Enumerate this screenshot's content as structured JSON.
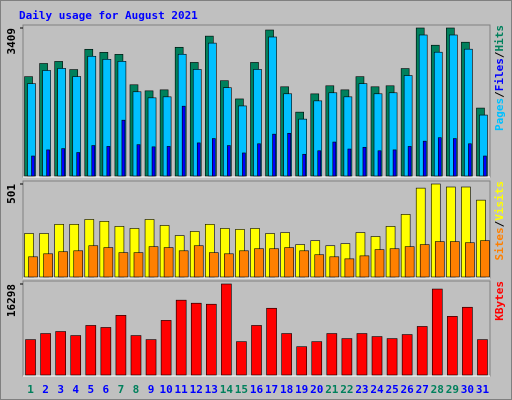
{
  "chart_data": [
    {
      "type": "bar",
      "title": "Daily usage for August 2021",
      "title_color": "#0000ff",
      "legend_separator": "/",
      "series": [
        {
          "name": "Hits",
          "color": "#00805c",
          "values": [
            2296,
            2597,
            2644,
            2458,
            2922,
            2852,
            2806,
            2110,
            1971,
            1994,
            2968,
            2621,
            3223,
            2203,
            1786,
            2621,
            3363,
            2064,
            1484,
            1902,
            2087,
            1994,
            2296,
            2064,
            2087,
            2481,
            3409,
            3015,
            3409,
            3084,
            1577
          ]
        },
        {
          "name": "Files",
          "color": "#0000ff",
          "values": [
            480,
            620,
            650,
            560,
            720,
            700,
            1300,
            740,
            690,
            700,
            1620,
            780,
            880,
            720,
            550,
            760,
            980,
            1000,
            520,
            600,
            800,
            640,
            680,
            600,
            620,
            700,
            820,
            900,
            880,
            760,
            480
          ]
        },
        {
          "name": "Pages",
          "color": "#00c0ff",
          "values": [
            2136,
            2437,
            2484,
            2298,
            2762,
            2692,
            2646,
            1950,
            1811,
            1834,
            2808,
            2461,
            3063,
            2043,
            1626,
            2461,
            3203,
            1904,
            1324,
            1742,
            1927,
            1834,
            2136,
            1904,
            1927,
            2321,
            3249,
            2855,
            3249,
            2924,
            1417
          ]
        }
      ],
      "ylim": [
        0,
        3409
      ],
      "yticks": [
        3409
      ]
    },
    {
      "type": "bar",
      "series": [
        {
          "name": "Visits",
          "color": "#ffff00",
          "values": [
            237,
            237,
            286,
            286,
            312,
            302,
            275,
            264,
            312,
            280,
            226,
            248,
            286,
            264,
            259,
            264,
            237,
            242,
            178,
            199,
            172,
            183,
            242,
            221,
            275,
            339,
            479,
            501,
            485,
            485,
            415
          ]
        },
        {
          "name": "Sites",
          "color": "#ff8000",
          "values": [
            113,
            129,
            140,
            145,
            172,
            162,
            135,
            135,
            167,
            162,
            145,
            172,
            135,
            129,
            145,
            156,
            156,
            162,
            145,
            124,
            113,
            102,
            118,
            151,
            156,
            167,
            178,
            194,
            194,
            188,
            199
          ]
        }
      ],
      "ylim": [
        0,
        501
      ],
      "yticks": [
        501
      ]
    },
    {
      "type": "bar",
      "categories": [
        "1",
        "2",
        "3",
        "4",
        "5",
        "6",
        "7",
        "8",
        "9",
        "10",
        "11",
        "12",
        "13",
        "14",
        "15",
        "16",
        "17",
        "18",
        "19",
        "20",
        "21",
        "22",
        "23",
        "24",
        "25",
        "26",
        "27",
        "28",
        "29",
        "30",
        "31"
      ],
      "category_colors": [
        "#00805c",
        "#0000ff",
        "#0000ff",
        "#0000ff",
        "#0000ff",
        "#0000ff",
        "#00805c",
        "#00805c",
        "#0000ff",
        "#0000ff",
        "#0000ff",
        "#0000ff",
        "#0000ff",
        "#00805c",
        "#00805c",
        "#0000ff",
        "#0000ff",
        "#0000ff",
        "#0000ff",
        "#0000ff",
        "#00805c",
        "#00805c",
        "#0000ff",
        "#0000ff",
        "#0000ff",
        "#0000ff",
        "#0000ff",
        "#00805c",
        "#00805c",
        "#0000ff",
        "#0000ff"
      ],
      "series": [
        {
          "name": "KBytes",
          "color": "#ff0000",
          "values": [
            6448,
            7522,
            7880,
            7164,
            8955,
            8597,
            10746,
            7164,
            6448,
            9850,
            13432,
            12895,
            12716,
            16298,
            6089,
            8955,
            12000,
            7522,
            5194,
            6089,
            7522,
            6627,
            7522,
            6985,
            6627,
            7343,
            8776,
            15403,
            10567,
            12179,
            6448
          ]
        }
      ],
      "ylim": [
        0,
        16298
      ],
      "yticks": [
        16298
      ]
    }
  ]
}
